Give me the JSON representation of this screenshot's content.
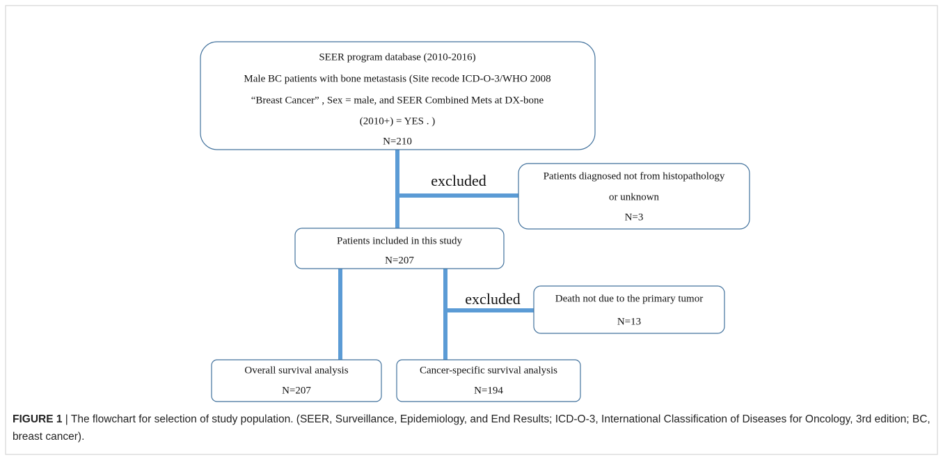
{
  "boxes": [
    {
      "lines": [
        "SEER program database (2010-2016)",
        "Male BC patients with bone metastasis (Site recode ICD-O-3/WHO 2008",
        "“Breast Cancer” , Sex = male,  and SEER Combined Mets at DX-bone",
        "(2010+)  = YES . )",
        "N=210"
      ]
    },
    {
      "lines": [
        "Patients diagnosed not from histopathology",
        "or unknown",
        "N=3"
      ]
    },
    {
      "lines": [
        "Patients included in this study",
        "N=207"
      ]
    },
    {
      "lines": [
        "Death not due to the primary tumor",
        "N=13"
      ]
    },
    {
      "lines": [
        "Overall survival  analysis",
        "N=207"
      ]
    },
    {
      "lines": [
        "Cancer-specific survival  analysis",
        "N=194"
      ]
    }
  ],
  "edge_labels": [
    "excluded",
    "excluded"
  ],
  "caption": {
    "label": "FIGURE 1",
    "text": "| The flowchart for selection of study population. (SEER, Surveillance, Epidemiology, and End Results; ICD-O-3, International Classification of Diseases for Oncology, 3rd edition; BC, breast cancer)."
  }
}
